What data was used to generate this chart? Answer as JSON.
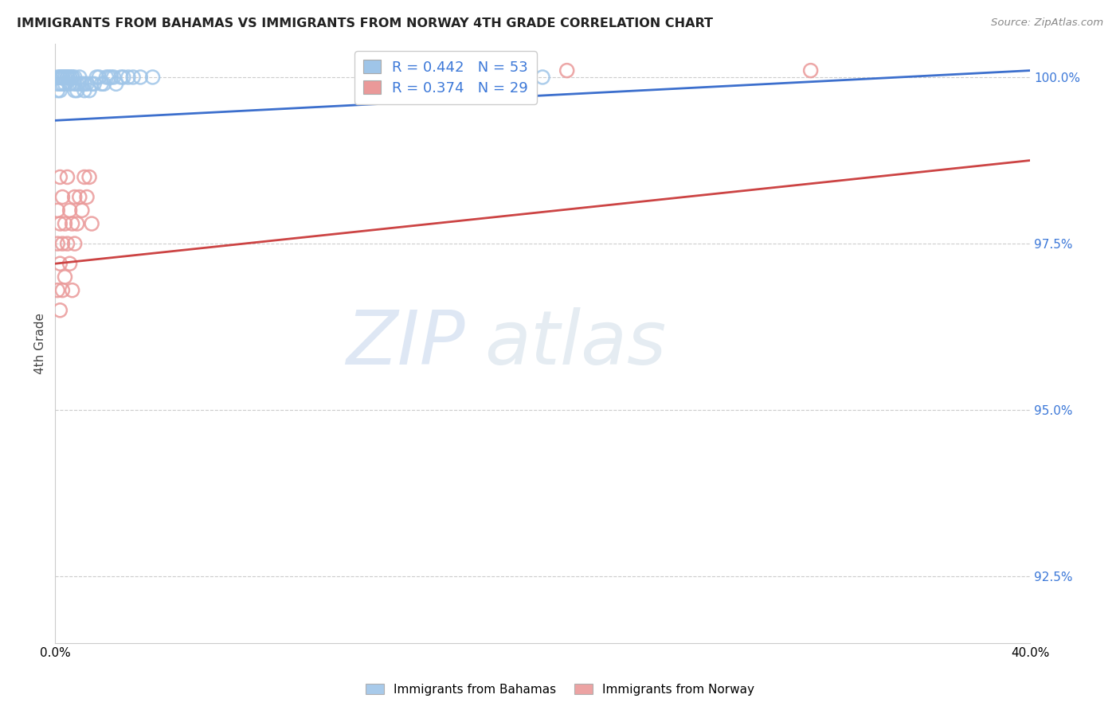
{
  "title": "IMMIGRANTS FROM BAHAMAS VS IMMIGRANTS FROM NORWAY 4TH GRADE CORRELATION CHART",
  "source": "Source: ZipAtlas.com",
  "ylabel": "4th Grade",
  "xlim": [
    0.0,
    0.4
  ],
  "ylim": [
    0.915,
    1.005
  ],
  "xticks": [
    0.0,
    0.05,
    0.1,
    0.15,
    0.2,
    0.25,
    0.3,
    0.35,
    0.4
  ],
  "xticklabels": [
    "0.0%",
    "",
    "",
    "",
    "",
    "",
    "",
    "",
    "40.0%"
  ],
  "yticks": [
    0.925,
    0.95,
    0.975,
    1.0
  ],
  "yticklabels": [
    "92.5%",
    "95.0%",
    "97.5%",
    "100.0%"
  ],
  "bahamas_color": "#9fc5e8",
  "norway_color": "#ea9999",
  "trendline_bahamas_color": "#3c6fcd",
  "trendline_norway_color": "#cc4444",
  "R_bahamas": 0.442,
  "N_bahamas": 53,
  "R_norway": 0.374,
  "N_norway": 29,
  "legend_label_bahamas": "Immigrants from Bahamas",
  "legend_label_norway": "Immigrants from Norway",
  "watermark_zip": "ZIP",
  "watermark_atlas": "atlas",
  "bahamas_x": [
    0.001,
    0.001,
    0.001,
    0.002,
    0.002,
    0.002,
    0.002,
    0.003,
    0.003,
    0.003,
    0.003,
    0.003,
    0.004,
    0.004,
    0.004,
    0.005,
    0.005,
    0.005,
    0.006,
    0.006,
    0.006,
    0.007,
    0.007,
    0.008,
    0.008,
    0.008,
    0.009,
    0.009,
    0.01,
    0.01,
    0.011,
    0.012,
    0.012,
    0.013,
    0.014,
    0.015,
    0.016,
    0.017,
    0.018,
    0.019,
    0.02,
    0.021,
    0.022,
    0.023,
    0.024,
    0.025,
    0.027,
    0.028,
    0.03,
    0.032,
    0.035,
    0.04,
    0.2
  ],
  "bahamas_y": [
    0.999,
    0.998,
    1.0,
    0.999,
    1.0,
    0.998,
    1.0,
    0.999,
    1.0,
    1.0,
    1.0,
    1.0,
    1.0,
    0.999,
    1.0,
    1.0,
    1.0,
    1.0,
    1.0,
    1.0,
    0.999,
    1.0,
    1.0,
    0.998,
    0.999,
    1.0,
    0.998,
    0.999,
    0.999,
    1.0,
    0.999,
    0.998,
    0.999,
    0.999,
    0.998,
    0.999,
    0.999,
    1.0,
    1.0,
    0.999,
    0.999,
    1.0,
    1.0,
    1.0,
    1.0,
    0.999,
    1.0,
    1.0,
    1.0,
    1.0,
    1.0,
    1.0,
    1.0
  ],
  "norway_x": [
    0.001,
    0.001,
    0.001,
    0.002,
    0.002,
    0.002,
    0.002,
    0.003,
    0.003,
    0.003,
    0.004,
    0.004,
    0.005,
    0.005,
    0.006,
    0.006,
    0.007,
    0.007,
    0.008,
    0.008,
    0.009,
    0.01,
    0.011,
    0.012,
    0.013,
    0.014,
    0.21,
    0.31,
    0.015
  ],
  "norway_y": [
    0.968,
    0.975,
    0.98,
    0.965,
    0.978,
    0.972,
    0.985,
    0.968,
    0.975,
    0.982,
    0.97,
    0.978,
    0.975,
    0.985,
    0.972,
    0.98,
    0.968,
    0.978,
    0.975,
    0.982,
    0.978,
    0.982,
    0.98,
    0.985,
    0.982,
    0.985,
    1.001,
    1.001,
    0.978
  ],
  "trendline_bahamas_x0": 0.0,
  "trendline_bahamas_x1": 0.4,
  "trendline_bahamas_y0": 0.9935,
  "trendline_bahamas_y1": 1.001,
  "trendline_norway_x0": 0.0,
  "trendline_norway_x1": 0.4,
  "trendline_norway_y0": 0.972,
  "trendline_norway_y1": 0.9875
}
